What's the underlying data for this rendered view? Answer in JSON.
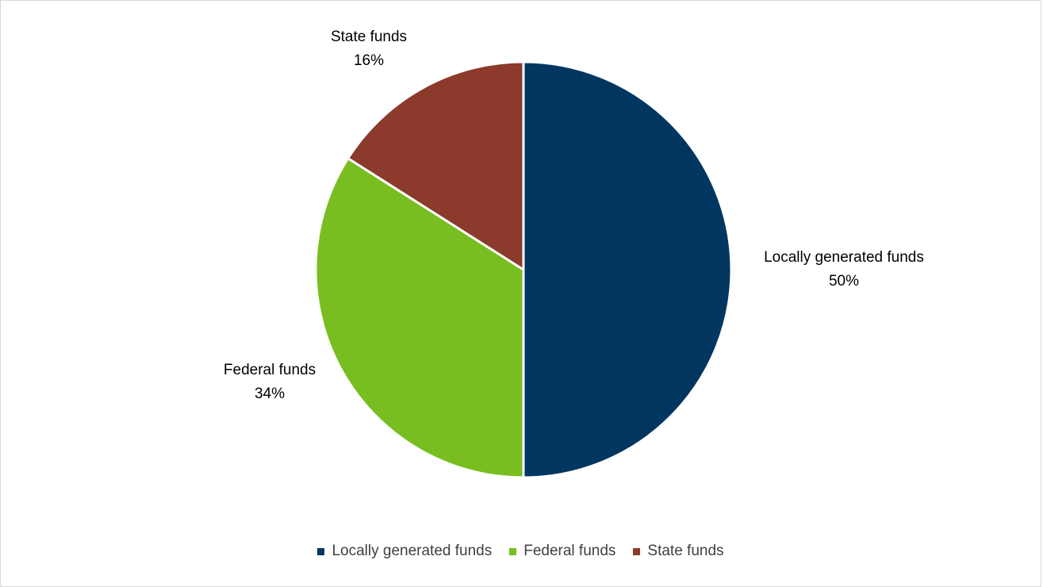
{
  "chart_data": {
    "type": "pie",
    "title": "",
    "slices": [
      {
        "label": "Locally generated funds",
        "value": 50,
        "value_label": "50%",
        "color": "#003660"
      },
      {
        "label": "Federal funds",
        "value": 34,
        "value_label": "34%",
        "color": "#78BE20"
      },
      {
        "label": "State funds",
        "value": 16,
        "value_label": "16%",
        "color": "#8B3A2B"
      }
    ],
    "start_angle_deg": 0,
    "direction": "clockwise",
    "legend_placement": "bottom"
  }
}
